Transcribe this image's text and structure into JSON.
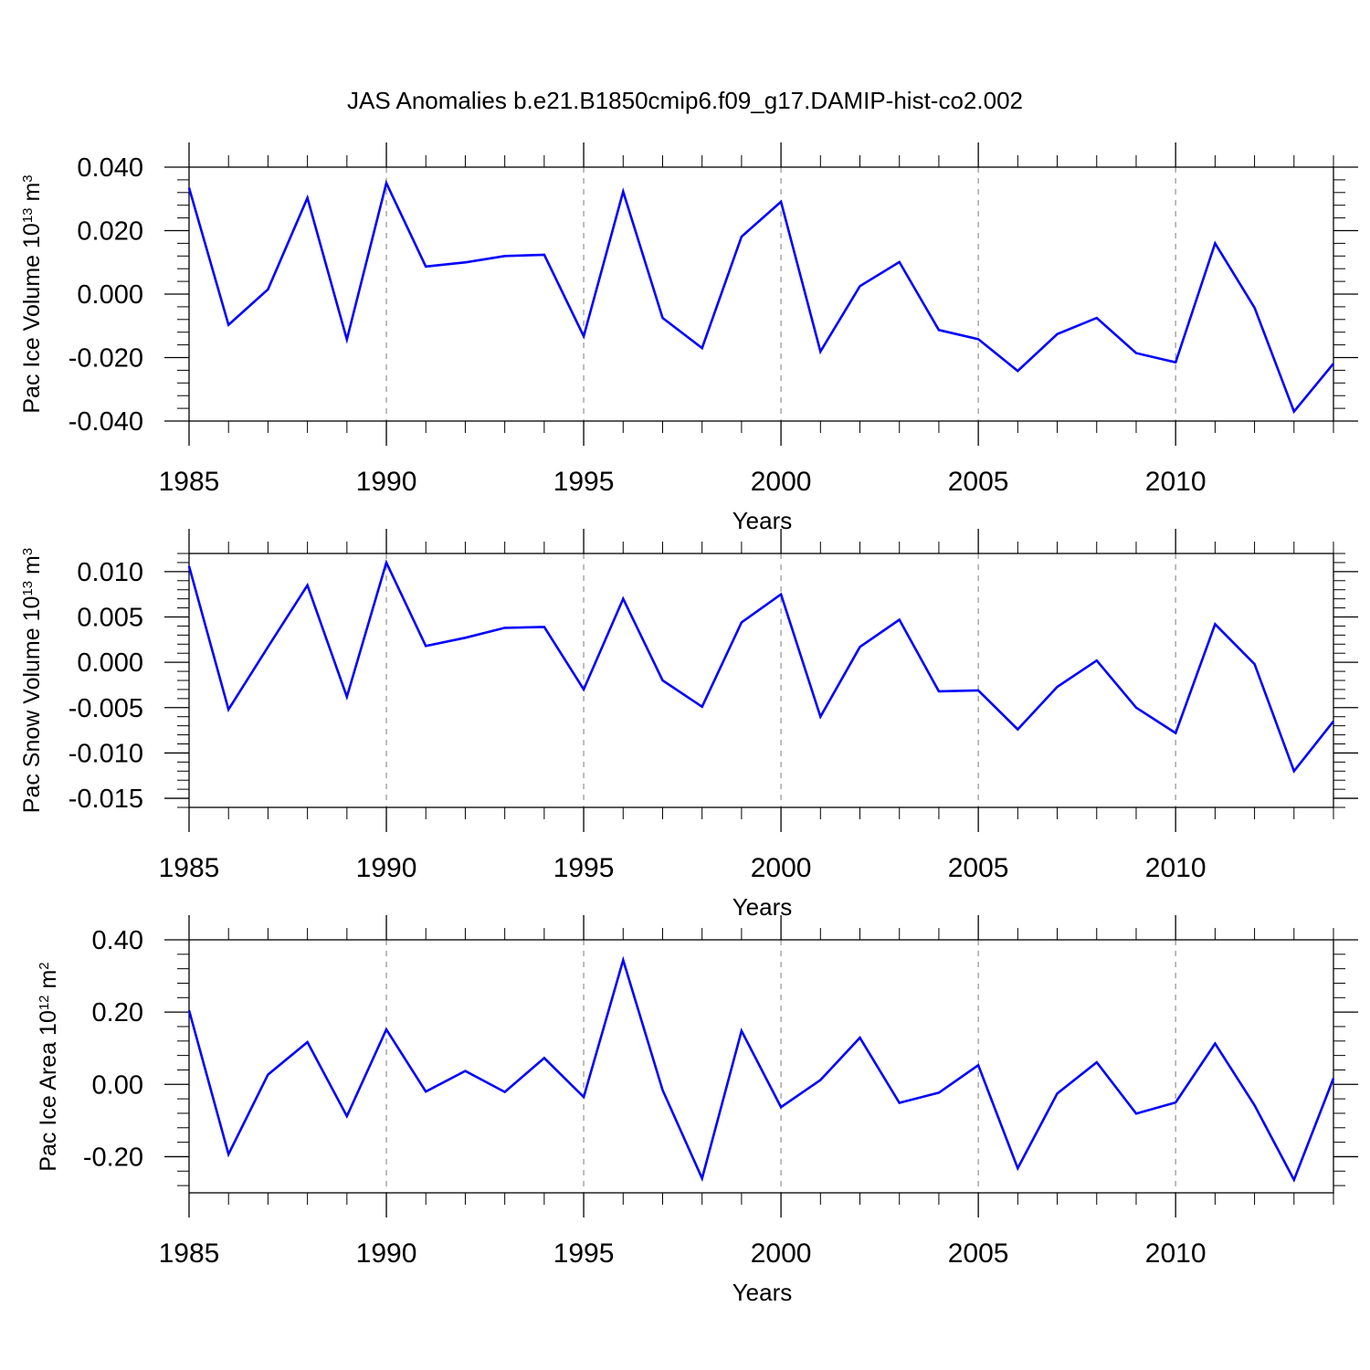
{
  "title": "JAS Anomalies b.e21.B1850cmip6.f09_g17.DAMIP-hist-co2.002",
  "colors": {
    "line": "#0000ff",
    "axis": "#000000",
    "grid": "#9a9a9a"
  },
  "chart_data": [
    {
      "type": "line",
      "ylabel": {
        "prefix": "Pac Ice Volume 10",
        "exponent": "13",
        "unit": " m",
        "unit_exponent": "3"
      },
      "xlabel": "Years",
      "x": [
        1985,
        1986,
        1987,
        1988,
        1989,
        1990,
        1991,
        1992,
        1993,
        1994,
        1995,
        1996,
        1997,
        1998,
        1999,
        2000,
        2001,
        2002,
        2003,
        2004,
        2005,
        2006,
        2007,
        2008,
        2009,
        2010,
        2011,
        2012,
        2013,
        2014
      ],
      "values": [
        0.0335,
        -0.0097,
        0.0015,
        0.0303,
        -0.0143,
        0.035,
        0.0087,
        0.01,
        0.012,
        0.0124,
        -0.0133,
        0.0323,
        -0.0075,
        -0.017,
        0.0181,
        0.0291,
        -0.0181,
        0.0025,
        0.0101,
        -0.0113,
        -0.0142,
        -0.0242,
        -0.0126,
        -0.0075,
        -0.0186,
        -0.0215,
        0.016,
        -0.0043,
        -0.037,
        -0.0219
      ],
      "xlim": [
        1985,
        2014
      ],
      "ylim": [
        -0.04,
        0.04
      ],
      "yticks": [
        0.04,
        0.02,
        0.0,
        -0.02,
        -0.04
      ],
      "ytick_labels": [
        "0.040",
        "0.020",
        "0.000",
        "-0.020",
        "-0.040"
      ],
      "yminor": 0.004,
      "xticks": [
        1985,
        1990,
        1995,
        2000,
        2005,
        2010
      ],
      "xtick_labels": [
        "1985",
        "1990",
        "1995",
        "2000",
        "2005",
        "2010"
      ],
      "grid": "dashed vertical at major x ticks"
    },
    {
      "type": "line",
      "ylabel": {
        "prefix": "Pac Snow Volume 10",
        "exponent": "13",
        "unit": " m",
        "unit_exponent": "3"
      },
      "xlabel": "Years",
      "x": [
        1985,
        1986,
        1987,
        1988,
        1989,
        1990,
        1991,
        1992,
        1993,
        1994,
        1995,
        1996,
        1997,
        1998,
        1999,
        2000,
        2001,
        2002,
        2003,
        2004,
        2005,
        2006,
        2007,
        2008,
        2009,
        2010,
        2011,
        2012,
        2013,
        2014
      ],
      "values": [
        0.0106,
        -0.0052,
        0.0017,
        0.0085,
        -0.0038,
        0.011,
        0.0018,
        0.0027,
        0.0038,
        0.0039,
        -0.003,
        0.007,
        -0.002,
        -0.0049,
        0.0044,
        0.0075,
        -0.006,
        0.0017,
        0.0047,
        -0.0032,
        -0.0031,
        -0.0074,
        -0.0027,
        0.0002,
        -0.005,
        -0.0078,
        0.0042,
        -0.0002,
        -0.012,
        -0.0065
      ],
      "xlim": [
        1985,
        2014
      ],
      "ylim": [
        -0.016,
        0.012
      ],
      "yticks": [
        0.01,
        0.005,
        0.0,
        -0.005,
        -0.01,
        -0.015
      ],
      "ytick_labels": [
        "0.010",
        "0.005",
        "0.000",
        "-0.005",
        "-0.010",
        "-0.015"
      ],
      "yminor": 0.001,
      "xticks": [
        1985,
        1990,
        1995,
        2000,
        2005,
        2010
      ],
      "xtick_labels": [
        "1985",
        "1990",
        "1995",
        "2000",
        "2005",
        "2010"
      ],
      "grid": "dashed vertical at major x ticks"
    },
    {
      "type": "line",
      "ylabel": {
        "prefix": "Pac Ice Area 10",
        "exponent": "12",
        "unit": " m",
        "unit_exponent": "2"
      },
      "xlabel": "Years",
      "x": [
        1985,
        1986,
        1987,
        1988,
        1989,
        1990,
        1991,
        1992,
        1993,
        1994,
        1995,
        1996,
        1997,
        1998,
        1999,
        2000,
        2001,
        2002,
        2003,
        2004,
        2005,
        2006,
        2007,
        2008,
        2009,
        2010,
        2011,
        2012,
        2013,
        2014
      ],
      "values": [
        0.205,
        -0.193,
        0.027,
        0.117,
        -0.088,
        0.152,
        -0.02,
        0.037,
        -0.021,
        0.073,
        -0.035,
        0.344,
        -0.016,
        -0.26,
        0.148,
        -0.063,
        0.012,
        0.129,
        -0.051,
        -0.023,
        0.053,
        -0.232,
        -0.025,
        0.061,
        -0.081,
        -0.05,
        0.113,
        -0.058,
        -0.264,
        0.017
      ],
      "xlim": [
        1985,
        2014
      ],
      "ylim": [
        -0.3,
        0.4
      ],
      "yticks": [
        0.4,
        0.2,
        0.0,
        -0.2
      ],
      "ytick_labels": [
        "0.40",
        "0.20",
        "0.00",
        "-0.20"
      ],
      "yminor": 0.04,
      "xticks": [
        1985,
        1990,
        1995,
        2000,
        2005,
        2010
      ],
      "xtick_labels": [
        "1985",
        "1990",
        "1995",
        "2000",
        "2005",
        "2010"
      ],
      "grid": "dashed vertical at major x ticks"
    }
  ]
}
